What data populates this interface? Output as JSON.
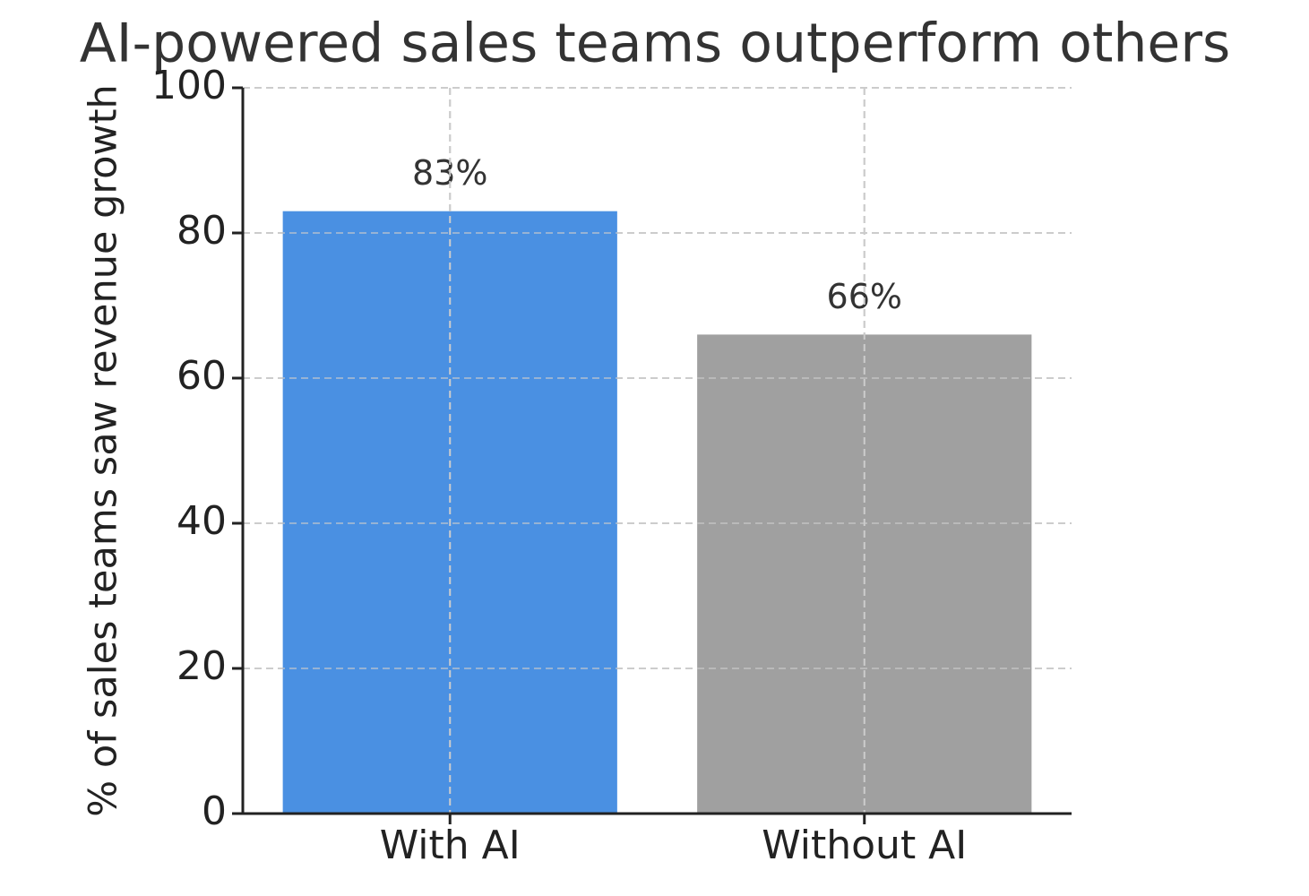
{
  "chart_data": {
    "type": "bar",
    "title": "AI-powered sales teams outperform others",
    "ylabel": "% of sales teams saw revenue growth",
    "categories": [
      "With AI",
      "Without AI"
    ],
    "values": [
      83,
      66
    ],
    "value_labels": [
      "83%",
      "66%"
    ],
    "colors": [
      "#4a90e2",
      "#a0a0a0"
    ],
    "ylim": [
      0,
      100
    ],
    "yticks": [
      0,
      20,
      40,
      60,
      80,
      100
    ],
    "grid": true
  }
}
